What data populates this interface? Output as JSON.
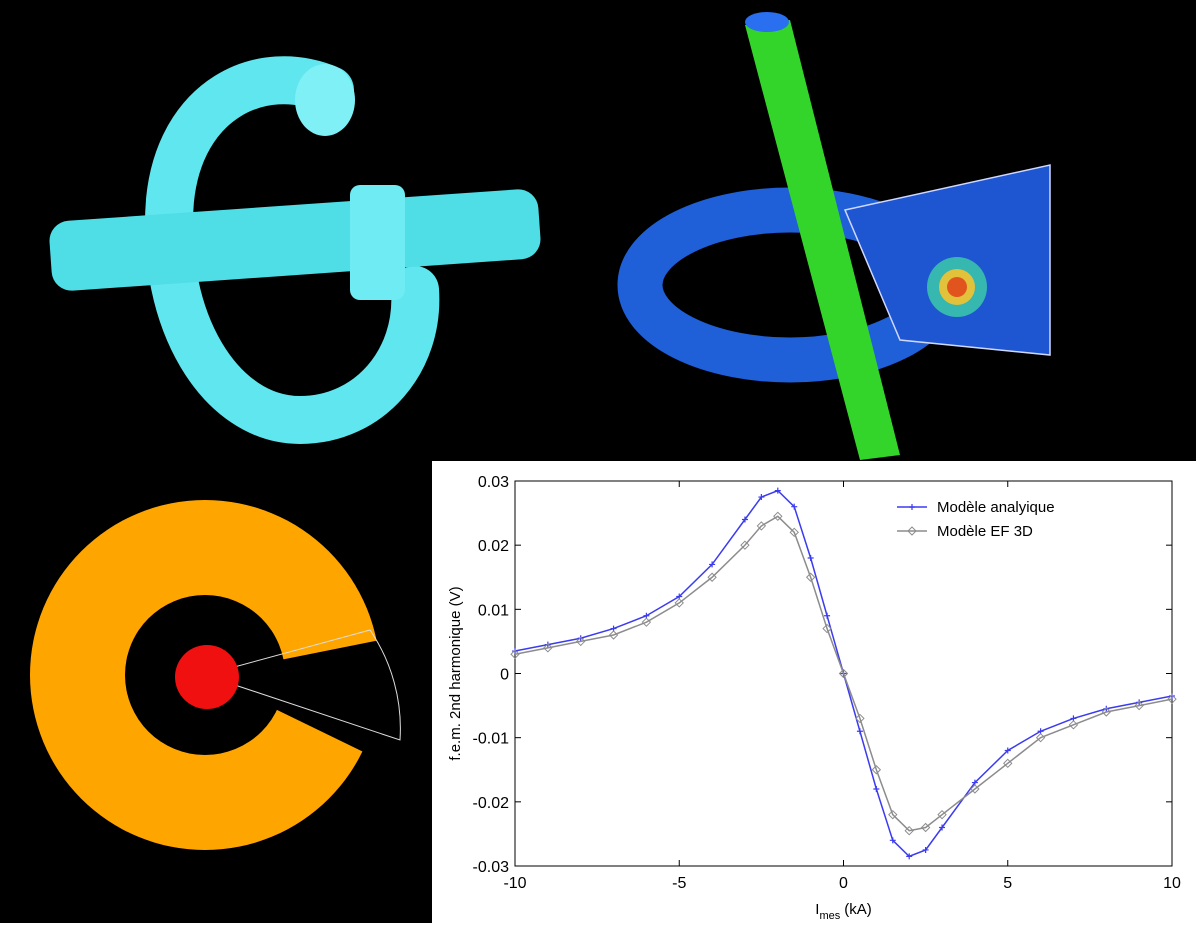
{
  "chart_data": {
    "type": "line",
    "y_label": "f.e.m. 2nd harmonique (V)",
    "x_label": {
      "main": "I",
      "sub": "mes",
      "unit": "(kA)"
    },
    "x": [
      -10,
      -9,
      -8,
      -7,
      -6,
      -5,
      -4,
      -3,
      -2.5,
      -2,
      -1.5,
      -1,
      -0.5,
      0,
      0.5,
      1,
      1.5,
      2,
      2.5,
      3,
      4,
      5,
      6,
      7,
      8,
      9,
      10
    ],
    "series": [
      {
        "name": "Modèle analyique",
        "color": "#3b3bf0",
        "marker": "plus",
        "values": [
          0.0035,
          0.0045,
          0.0055,
          0.007,
          0.009,
          0.012,
          0.017,
          0.024,
          0.0275,
          0.0285,
          0.026,
          0.018,
          0.009,
          0,
          -0.009,
          -0.018,
          -0.026,
          -0.0285,
          -0.0275,
          -0.024,
          -0.017,
          -0.012,
          -0.009,
          -0.007,
          -0.0055,
          -0.0045,
          -0.0035
        ]
      },
      {
        "name": "Modèle EF 3D",
        "color": "#8c8c8c",
        "marker": "diamond",
        "values": [
          0.003,
          0.004,
          0.005,
          0.006,
          0.008,
          0.011,
          0.015,
          0.02,
          0.023,
          0.0245,
          0.022,
          0.015,
          0.007,
          0,
          -0.007,
          -0.015,
          -0.022,
          -0.0245,
          -0.024,
          -0.022,
          -0.018,
          -0.014,
          -0.01,
          -0.008,
          -0.006,
          -0.005,
          -0.004
        ]
      }
    ],
    "xlim": [
      -10,
      10
    ],
    "xticks": [
      -10,
      -5,
      0,
      5,
      10
    ],
    "ylim": [
      -0.03,
      0.03
    ],
    "yticks": [
      -0.03,
      -0.02,
      -0.01,
      0,
      0.01,
      0.02,
      0.03
    ],
    "grid": false,
    "legend": "top-right"
  }
}
